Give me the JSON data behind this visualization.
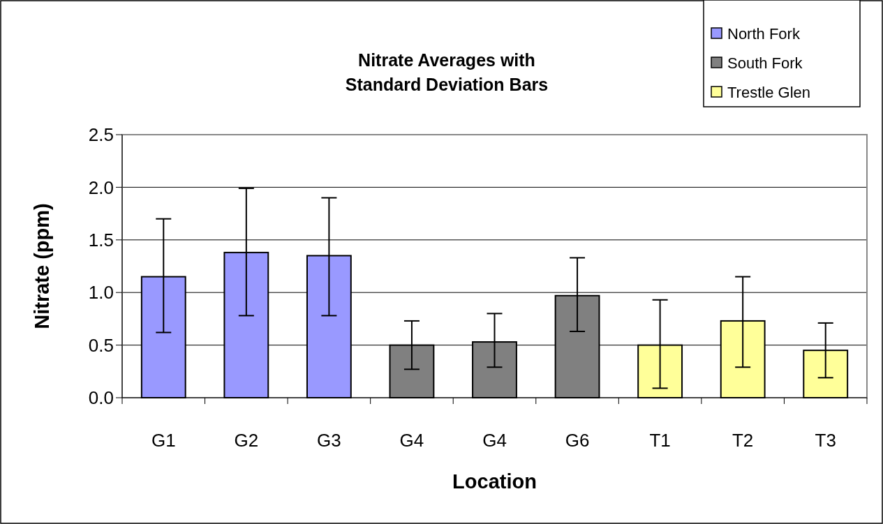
{
  "chart_data": {
    "type": "bar",
    "title": "Nitrate Averages with\nStandard Deviation Bars",
    "xlabel": "Location",
    "ylabel": "Nitrate (ppm)",
    "categories": [
      "G1",
      "G2",
      "G3",
      "G4",
      "G4",
      "G6",
      "T1",
      "T2",
      "T3"
    ],
    "series": [
      {
        "name": "North Fork",
        "color": "#9999ff",
        "values": [
          1.15,
          1.38,
          1.35,
          null,
          null,
          null,
          null,
          null,
          null
        ],
        "errors": [
          [
            0.62,
            1.7
          ],
          [
            0.78,
            1.99
          ],
          [
            0.78,
            1.9
          ],
          null,
          null,
          null,
          null,
          null,
          null
        ]
      },
      {
        "name": "South Fork",
        "color": "#808080",
        "values": [
          null,
          null,
          null,
          0.5,
          0.53,
          0.97,
          null,
          null,
          null
        ],
        "errors": [
          null,
          null,
          null,
          [
            0.27,
            0.73
          ],
          [
            0.29,
            0.8
          ],
          [
            0.63,
            1.33
          ],
          null,
          null,
          null
        ]
      },
      {
        "name": "Trestle Glen",
        "color": "#ffff99",
        "values": [
          null,
          null,
          null,
          null,
          null,
          null,
          0.5,
          0.73,
          0.45
        ],
        "errors": [
          null,
          null,
          null,
          null,
          null,
          null,
          [
            0.09,
            0.93
          ],
          [
            0.29,
            1.15
          ],
          [
            0.19,
            0.71
          ]
        ]
      }
    ],
    "ylim": [
      0,
      2.5
    ],
    "yticks": [
      {
        "value": 0,
        "label": "0.0"
      },
      {
        "value": 0.5,
        "label": "0.5"
      },
      {
        "value": 1,
        "label": "1.0"
      },
      {
        "value": 1.5,
        "label": "1.5"
      },
      {
        "value": 2,
        "label": "2.0"
      },
      {
        "value": 2.5,
        "label": "2.5"
      }
    ],
    "grid": "y",
    "legend": "top right"
  }
}
